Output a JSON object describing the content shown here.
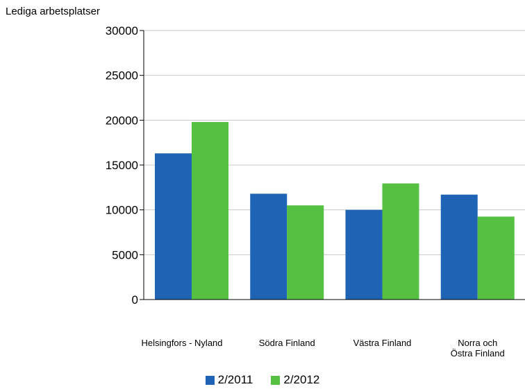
{
  "chart_data": {
    "type": "bar",
    "ylabel": "Lediga arbetsplatser",
    "ylim": [
      0,
      30000
    ],
    "yticks": [
      "0",
      "5000",
      "10000",
      "15000",
      "20000",
      "25000",
      "30000"
    ],
    "grid": true,
    "legend_position": "bottom",
    "categories": [
      [
        "Helsingfors - Nyland"
      ],
      [
        "Södra Finland"
      ],
      [
        "Västra Finland"
      ],
      [
        "Norra och",
        "Östra Finland"
      ]
    ],
    "series": [
      {
        "name": "2/2011",
        "color": "#1f64b4",
        "values": [
          16300,
          11800,
          10000,
          11700
        ]
      },
      {
        "name": "2/2012",
        "color": "#55c042",
        "values": [
          19800,
          10500,
          12950,
          9250
        ]
      }
    ]
  }
}
